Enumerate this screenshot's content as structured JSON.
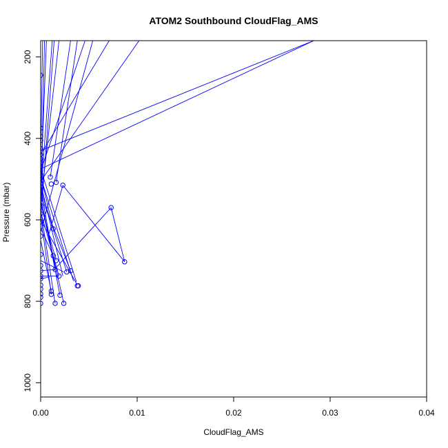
{
  "chart_data": {
    "type": "line",
    "title": "ATOM2 Southbound CloudFlag_AMS",
    "xlabel": "CloudFlag_AMS",
    "ylabel": "Pressure (mbar)",
    "xlim": [
      0,
      0.04
    ],
    "ylim": [
      1035,
      160
    ],
    "y_reversed": true,
    "x_ticks": [
      0,
      0.01,
      0.02,
      0.03,
      0.04
    ],
    "x_tick_labels": [
      "0.00",
      "0.01",
      "0.02",
      "0.03",
      "0.04"
    ],
    "y_ticks": [
      200,
      400,
      600,
      800,
      1000
    ],
    "y_tick_labels": [
      "200",
      "400",
      "600",
      "800",
      "1000"
    ],
    "grid": false,
    "series": [
      {
        "color": "#0000ff",
        "marker": "open-circle",
        "points": [
          [
            0.0,
            245
          ],
          [
            0.0,
            375
          ],
          [
            0.0,
            395
          ],
          [
            0.0,
            405
          ],
          [
            0.0,
            425
          ],
          [
            0.0,
            440
          ],
          [
            0.0,
            450
          ],
          [
            0.0,
            460
          ],
          [
            0.0,
            470
          ],
          [
            0.0,
            478
          ],
          [
            0.0,
            488
          ],
          [
            0.0,
            498
          ],
          [
            0.0,
            510
          ],
          [
            0.0,
            520
          ],
          [
            0.0,
            530
          ],
          [
            0.0,
            540
          ],
          [
            0.0,
            565
          ],
          [
            0.0,
            585
          ],
          [
            0.0,
            605
          ],
          [
            0.0,
            640
          ],
          [
            0.0,
            685
          ],
          [
            0.0,
            712
          ],
          [
            0.0,
            725
          ],
          [
            0.0,
            738
          ],
          [
            0.0,
            745
          ],
          [
            0.0,
            760
          ],
          [
            0.0,
            770
          ],
          [
            0.0,
            782
          ],
          [
            0.0,
            790
          ],
          [
            0.0,
            805
          ],
          [
            0.001,
            495
          ],
          [
            0.0011,
            512
          ],
          [
            0.0016,
            508
          ],
          [
            0.0023,
            515
          ],
          [
            0.0013,
            622
          ],
          [
            0.0016,
            700
          ],
          [
            0.0019,
            738
          ],
          [
            0.0027,
            728
          ],
          [
            0.0031,
            725
          ],
          [
            0.0038,
            762
          ],
          [
            0.0039,
            762
          ],
          [
            0.0073,
            570
          ],
          [
            0.0087,
            703
          ],
          [
            0.0011,
            775
          ],
          [
            0.0011,
            783
          ],
          [
            0.0015,
            805
          ],
          [
            0.002,
            785
          ],
          [
            0.0024,
            805
          ],
          [
            0.0013,
            688
          ],
          [
            0.0015,
            722
          ]
        ],
        "segments": [
          [
            [
              0.0002,
              160
            ],
            [
              0.0,
              480
            ]
          ],
          [
            [
              0.0006,
              160
            ],
            [
              0.0,
              520
            ]
          ],
          [
            [
              0.0012,
              160
            ],
            [
              0.0,
              540
            ]
          ],
          [
            [
              0.0046,
              160
            ],
            [
              0.0,
              480
            ]
          ],
          [
            [
              0.0071,
              160
            ],
            [
              0.0,
              440
            ]
          ],
          [
            [
              0.0102,
              160
            ],
            [
              0.0,
              505
            ]
          ],
          [
            [
              0.0283,
              160
            ],
            [
              0.0,
              430
            ]
          ],
          [
            [
              0.0283,
              160
            ],
            [
              0.0,
              475
            ]
          ],
          [
            [
              0.0038,
              160
            ],
            [
              0.0016,
              508
            ]
          ],
          [
            [
              0.0031,
              160
            ],
            [
              0.001,
              495
            ]
          ],
          [
            [
              0.0019,
              160
            ],
            [
              0.0,
              560
            ]
          ],
          [
            [
              0.0004,
              160
            ],
            [
              0.0,
              600
            ]
          ],
          [
            [
              0.0054,
              160
            ],
            [
              0.0,
              630
            ]
          ],
          [
            [
              0.0014,
              160
            ],
            [
              0.0,
              600
            ]
          ],
          [
            [
              0.0,
              475
            ],
            [
              0.0037,
              752
            ]
          ],
          [
            [
              0.0,
              495
            ],
            [
              0.0034,
              750
            ]
          ],
          [
            [
              0.0,
              510
            ],
            [
              0.0023,
              738
            ]
          ],
          [
            [
              0.0,
              520
            ],
            [
              0.0015,
              722
            ]
          ],
          [
            [
              0.0,
              540
            ],
            [
              0.002,
              785
            ]
          ],
          [
            [
              0.0,
              555
            ],
            [
              0.0024,
              805
            ]
          ],
          [
            [
              0.0,
              575
            ],
            [
              0.0015,
              805
            ]
          ],
          [
            [
              0.0,
              590
            ],
            [
              0.0011,
              783
            ]
          ],
          [
            [
              0.0,
              620
            ],
            [
              0.0013,
              688
            ]
          ],
          [
            [
              0.0,
              540
            ],
            [
              0.0031,
              725
            ]
          ],
          [
            [
              0.0,
              525
            ],
            [
              0.0027,
              728
            ]
          ],
          [
            [
              0.0,
              560
            ],
            [
              0.0016,
              700
            ]
          ],
          [
            [
              0.0,
              580
            ],
            [
              0.0019,
              738
            ]
          ],
          [
            [
              0.0,
              600
            ],
            [
              0.0038,
              760
            ]
          ],
          [
            [
              0.0,
              490
            ],
            [
              0.0013,
              622
            ]
          ],
          [
            [
              0.0023,
              515
            ],
            [
              0.0008,
              640
            ]
          ],
          [
            [
              0.0023,
              515
            ],
            [
              0.0087,
              703
            ]
          ],
          [
            [
              0.0087,
              703
            ],
            [
              0.0073,
              570
            ]
          ],
          [
            [
              0.0073,
              570
            ],
            [
              0.0013,
              725
            ]
          ],
          [
            [
              0.0,
              725
            ],
            [
              0.0015,
              722
            ]
          ],
          [
            [
              0.0,
              738
            ],
            [
              0.0019,
              738
            ]
          ],
          [
            [
              0.0,
              745
            ],
            [
              0.0009,
              740
            ]
          ],
          [
            [
              0.0,
              650
            ],
            [
              0.0011,
              775
            ]
          ],
          [
            [
              0.0,
              700
            ],
            [
              0.0024,
              728
            ]
          ],
          [
            [
              0.0,
              160
            ],
            [
              0.0,
              805
            ]
          ]
        ]
      }
    ]
  }
}
